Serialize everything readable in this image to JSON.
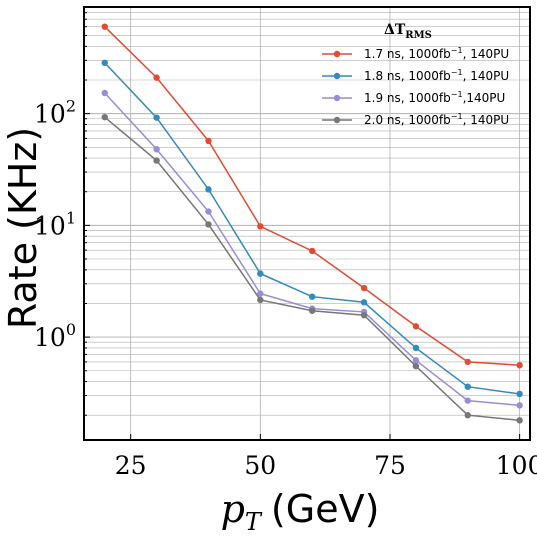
{
  "chart_data": {
    "type": "line",
    "title": "",
    "xlabel_prefix": "p",
    "xlabel_sub": "T",
    "xlabel_unit": "(GeV)",
    "ylabel": "Rate (KHz)",
    "x_scale": "linear",
    "y_scale": "log",
    "xlim": [
      16,
      102
    ],
    "ylim": [
      0.12,
      900
    ],
    "x_ticks": [
      {
        "value": 25,
        "label": "25"
      },
      {
        "value": 50,
        "label": "50"
      },
      {
        "value": 75,
        "label": "75"
      },
      {
        "value": 100,
        "label": "100"
      }
    ],
    "y_ticks": [
      {
        "value": 1,
        "base": "10",
        "exp": "0"
      },
      {
        "value": 10,
        "base": "10",
        "exp": "1"
      },
      {
        "value": 100,
        "base": "10",
        "exp": "2"
      }
    ],
    "grid": true,
    "legend_position": "top-right",
    "legend_title_main": "ΔT",
    "legend_title_sub": "RMS",
    "x": [
      20,
      30,
      40,
      50,
      60,
      70,
      80,
      90,
      100
    ],
    "series": [
      {
        "name_prefix": "1.7 ns, 1000fb",
        "name_exp": "−1",
        "name_suffix": ", 140PU",
        "color": "#e24a33",
        "values": [
          600,
          210,
          57,
          9.8,
          5.9,
          2.75,
          1.25,
          0.6,
          0.56
        ]
      },
      {
        "name_prefix": "1.8 ns, 1000fb",
        "name_exp": "−1",
        "name_suffix": ", 140PU",
        "color": "#348abd",
        "values": [
          285,
          92,
          21,
          3.7,
          2.3,
          2.05,
          0.8,
          0.36,
          0.31
        ]
      },
      {
        "name_prefix": "1.9 ns, 1000fb",
        "name_exp": "−1",
        "name_suffix": ",140PU",
        "color": "#988ed5",
        "values": [
          153,
          48,
          13.3,
          2.45,
          1.8,
          1.68,
          0.62,
          0.27,
          0.245
        ]
      },
      {
        "name_prefix": "2.0 ns, 1000fb",
        "name_exp": "−1",
        "name_suffix": ", 140PU",
        "color": "#777777",
        "values": [
          93,
          38,
          10.2,
          2.15,
          1.72,
          1.57,
          0.55,
          0.2,
          0.18
        ]
      }
    ]
  }
}
